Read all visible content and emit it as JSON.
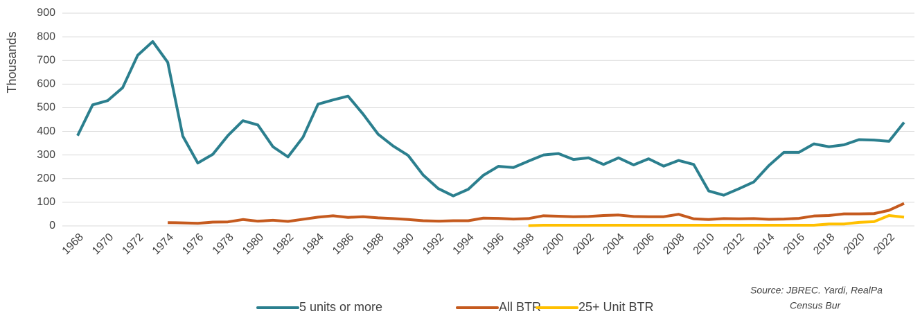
{
  "chart_data": {
    "type": "line",
    "y_label": "Thousands",
    "x": [
      1968,
      1969,
      1970,
      1971,
      1972,
      1973,
      1974,
      1975,
      1976,
      1977,
      1978,
      1979,
      1980,
      1981,
      1982,
      1983,
      1984,
      1985,
      1986,
      1987,
      1988,
      1989,
      1990,
      1991,
      1992,
      1993,
      1994,
      1995,
      1996,
      1997,
      1998,
      1999,
      2000,
      2001,
      2002,
      2003,
      2004,
      2005,
      2006,
      2007,
      2008,
      2009,
      2010,
      2011,
      2012,
      2013,
      2014,
      2015,
      2016,
      2017,
      2018,
      2019,
      2020,
      2021,
      2022,
      2023
    ],
    "xlim": [
      1968,
      2023
    ],
    "xticks": [
      1968,
      1970,
      1972,
      1974,
      1976,
      1978,
      1980,
      1982,
      1984,
      1986,
      1988,
      1990,
      1992,
      1994,
      1996,
      1998,
      2000,
      2002,
      2004,
      2006,
      2008,
      2010,
      2012,
      2014,
      2016,
      2018,
      2020,
      2022
    ],
    "ylim": [
      0,
      900
    ],
    "yticks": [
      0,
      100,
      200,
      300,
      400,
      500,
      600,
      700,
      800,
      900
    ],
    "grid": true,
    "legend": "bottom",
    "series": [
      {
        "name": "5 units or more",
        "color": "#2b7f8e",
        "values": [
          382,
          512,
          530,
          585,
          722,
          780,
          692,
          380,
          266,
          303,
          382,
          445,
          427,
          335,
          292,
          375,
          515,
          533,
          549,
          473,
          388,
          338,
          298,
          215,
          158,
          127,
          155,
          214,
          252,
          247,
          274,
          300,
          306,
          281,
          288,
          260,
          288,
          258,
          284,
          253,
          277,
          260,
          148,
          130,
          157,
          186,
          255,
          311,
          311,
          347,
          335,
          343,
          365,
          363,
          358,
          438
        ]
      },
      {
        "name": "All BTR",
        "color": "#c55a1e",
        "values": [
          null,
          null,
          null,
          null,
          null,
          null,
          14,
          13,
          11,
          16,
          17,
          27,
          20,
          24,
          19,
          28,
          37,
          43,
          36,
          39,
          34,
          31,
          27,
          22,
          20,
          22,
          22,
          33,
          32,
          29,
          31,
          43,
          41,
          39,
          40,
          44,
          46,
          40,
          39,
          39,
          49,
          30,
          27,
          31,
          30,
          31,
          28,
          29,
          32,
          42,
          44,
          51,
          51,
          52,
          66,
          95
        ]
      },
      {
        "name": "25+ Unit BTR",
        "color": "#ffc000",
        "values": [
          null,
          null,
          null,
          null,
          null,
          null,
          null,
          null,
          null,
          null,
          null,
          null,
          null,
          null,
          null,
          null,
          null,
          null,
          null,
          null,
          null,
          null,
          null,
          null,
          null,
          null,
          null,
          null,
          null,
          null,
          1,
          3,
          3,
          3,
          3,
          3,
          3,
          3,
          3,
          3,
          3,
          3,
          3,
          3,
          3,
          3,
          3,
          3,
          3,
          3,
          8,
          8,
          15,
          18,
          44,
          37
        ]
      }
    ],
    "source": [
      "Source: JBREC. Yardi, RealPa",
      "Census  Bur"
    ]
  }
}
